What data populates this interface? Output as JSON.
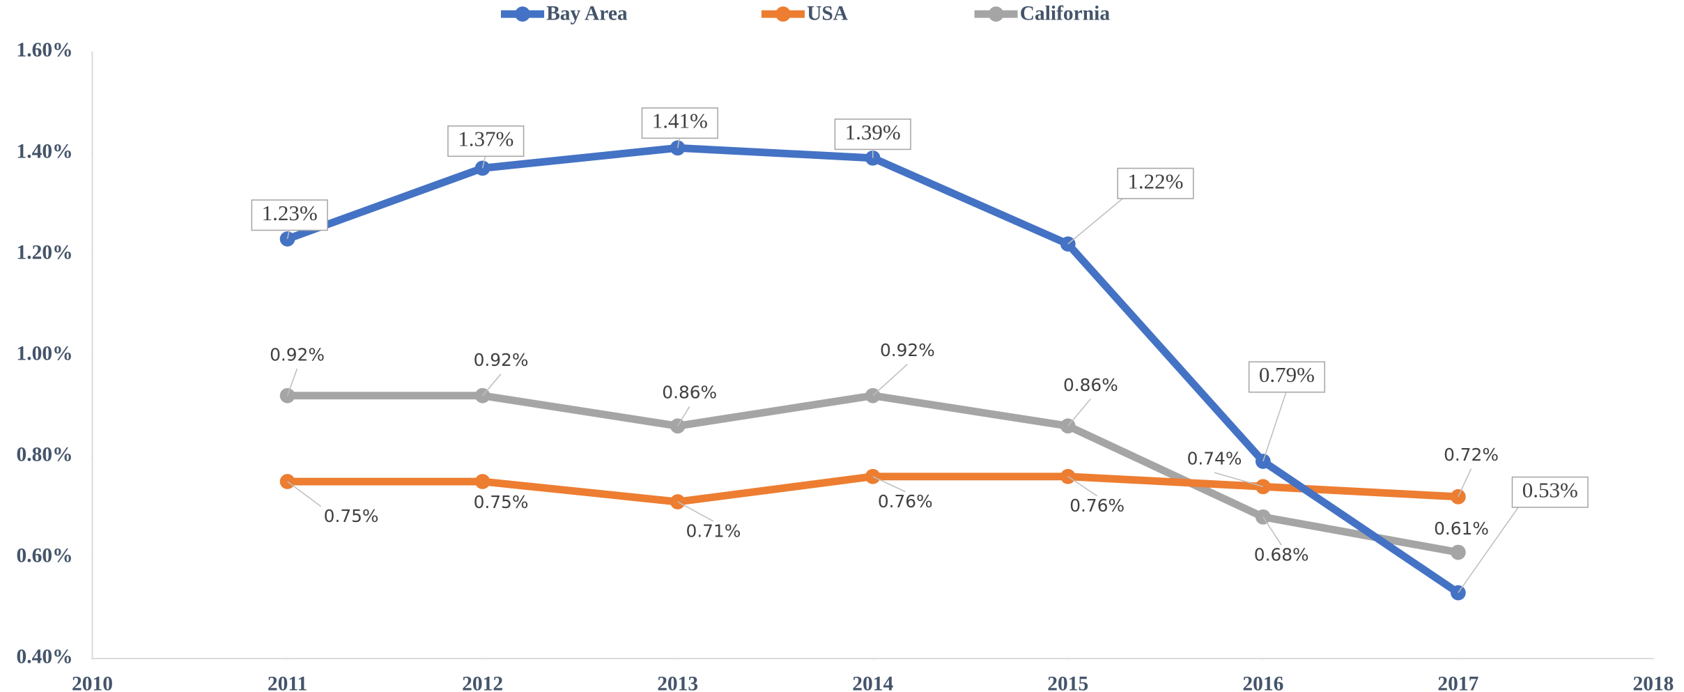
{
  "chart_data": {
    "type": "line",
    "x": [
      2011,
      2012,
      2013,
      2014,
      2015,
      2016,
      2017
    ],
    "series": [
      {
        "name": "Bay Area",
        "color": "#4472c4",
        "values": [
          1.23,
          1.37,
          1.41,
          1.39,
          1.22,
          0.79,
          0.53
        ],
        "value_labels": [
          "1.23%",
          "1.37%",
          "1.41%",
          "1.39%",
          "1.22%",
          "0.79%",
          "0.53%"
        ]
      },
      {
        "name": "USA",
        "color": "#ed7d31",
        "values": [
          0.75,
          0.75,
          0.71,
          0.76,
          0.76,
          0.74,
          0.72
        ],
        "value_labels": [
          "0.75%",
          "0.75%",
          "0.71%",
          "0.76%",
          "0.76%",
          "0.74%",
          "0.72%"
        ]
      },
      {
        "name": "California",
        "color": "#a5a5a5",
        "values": [
          0.92,
          0.92,
          0.86,
          0.92,
          0.86,
          0.68,
          0.61
        ],
        "value_labels": [
          "0.92%",
          "0.92%",
          "0.86%",
          "0.92%",
          "0.86%",
          "0.68%",
          "0.61%"
        ]
      }
    ],
    "xlim": [
      2010,
      2018
    ],
    "xticks": [
      2010,
      2011,
      2012,
      2013,
      2014,
      2015,
      2016,
      2017,
      2018
    ],
    "ylim": [
      0.4,
      1.6
    ],
    "yticks": [
      {
        "value": 0.4,
        "label": "0.40%"
      },
      {
        "value": 0.6,
        "label": "0.60%"
      },
      {
        "value": 0.8,
        "label": "0.80%"
      },
      {
        "value": 1.0,
        "label": "1.00%"
      },
      {
        "value": 1.2,
        "label": "1.20%"
      },
      {
        "value": 1.4,
        "label": "1.40%"
      },
      {
        "value": 1.6,
        "label": "1.60%"
      }
    ],
    "grid": false,
    "legend": "top"
  }
}
